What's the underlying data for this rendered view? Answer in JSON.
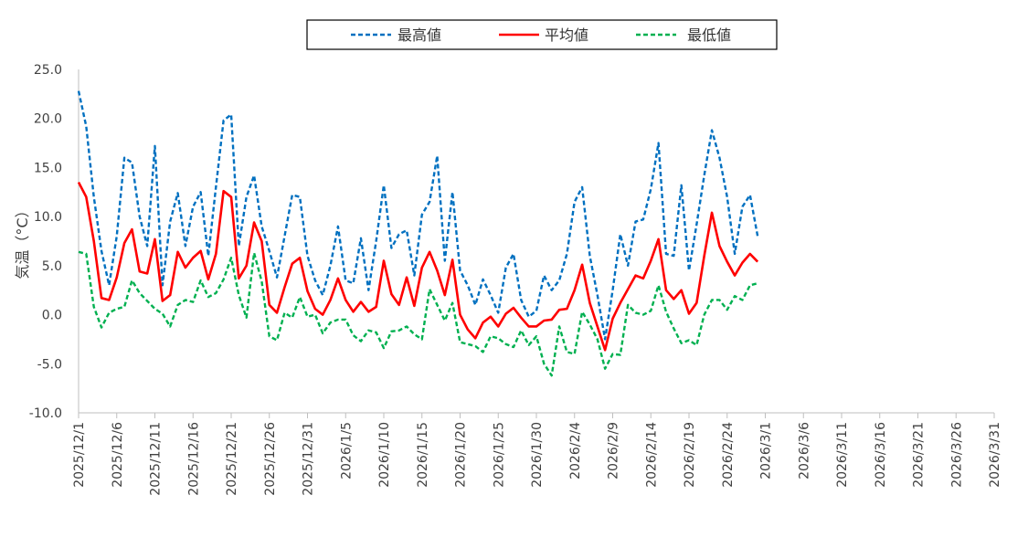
{
  "chart_data": {
    "type": "line",
    "title": "",
    "xlabel": "",
    "ylabel": "気温（°C）",
    "ylim": [
      -10,
      25
    ],
    "y_ticks": [
      "25.0",
      "20.0",
      "15.0",
      "10.0",
      "5.0",
      "0.0",
      "-5.0",
      "-10.0"
    ],
    "y_tick_values": [
      25,
      20,
      15,
      10,
      5,
      0,
      -5,
      -10
    ],
    "x_range": [
      "2025/12/1",
      "2026/3/31"
    ],
    "x_tick_labels": [
      "2025/12/1",
      "2025/12/6",
      "2025/12/11",
      "2025/12/16",
      "2025/12/21",
      "2025/12/26",
      "2025/12/31",
      "2026/1/5",
      "2026/1/10",
      "2026/1/15",
      "2026/1/20",
      "2026/1/25",
      "2026/1/30",
      "2026/2/4",
      "2026/2/9",
      "2026/2/14",
      "2026/2/19",
      "2026/2/24",
      "2026/3/1",
      "2026/3/6",
      "2026/3/11",
      "2026/3/16",
      "2026/3/21",
      "2026/3/26",
      "2026/3/31"
    ],
    "grid": false,
    "legend_position": "top-center",
    "series": [
      {
        "name": "最高値",
        "color": "#0070c0",
        "dash": "dashed",
        "values": [
          22.8,
          19.2,
          12.0,
          6.5,
          3.0,
          8.0,
          16.0,
          15.5,
          10.0,
          7.0,
          17.2,
          3.0,
          9.5,
          12.4,
          7.0,
          11.0,
          12.5,
          6.0,
          13.0,
          19.8,
          20.4,
          7.0,
          12.0,
          14.2,
          9.0,
          6.5,
          3.8,
          8.0,
          12.2,
          12.0,
          6.0,
          3.5,
          2.0,
          5.0,
          9.0,
          3.5,
          3.2,
          7.8,
          2.5,
          7.5,
          13.2,
          6.8,
          8.2,
          8.6,
          4.0,
          10.2,
          11.5,
          16.2,
          5.5,
          12.5,
          4.5,
          3.0,
          1.0,
          3.6,
          2.0,
          0.2,
          4.8,
          6.2,
          1.5,
          -0.2,
          0.4,
          4.0,
          2.5,
          3.5,
          6.2,
          11.5,
          13.0,
          6.0,
          2.0,
          -2.5,
          2.5,
          8.2,
          5.0,
          9.5,
          9.7,
          12.8,
          17.5,
          6.2,
          6.0,
          13.2,
          4.5,
          9.2,
          14.2,
          18.8,
          16.0,
          12.0,
          6.2,
          11.0,
          12.2,
          8.0
        ]
      },
      {
        "name": "平均値",
        "color": "#ff0000",
        "dash": "solid",
        "values": [
          13.5,
          12.0,
          7.5,
          1.7,
          1.5,
          3.8,
          7.3,
          8.7,
          4.4,
          4.2,
          7.7,
          1.4,
          2.0,
          6.4,
          4.8,
          5.8,
          6.5,
          3.6,
          6.2,
          12.6,
          12.0,
          3.7,
          5.0,
          9.4,
          7.5,
          1.0,
          0.2,
          2.8,
          5.2,
          5.8,
          2.4,
          0.6,
          0.0,
          1.5,
          3.7,
          1.5,
          0.3,
          1.3,
          0.3,
          0.8,
          5.5,
          2.1,
          1.0,
          3.8,
          0.9,
          4.8,
          6.4,
          4.5,
          2.0,
          5.6,
          0.0,
          -1.5,
          -2.4,
          -0.8,
          -0.2,
          -1.2,
          0.1,
          0.7,
          -0.3,
          -1.2,
          -1.2,
          -0.6,
          -0.5,
          0.5,
          0.6,
          2.5,
          5.1,
          1.2,
          -1.2,
          -3.6,
          -0.4,
          1.2,
          2.6,
          4.0,
          3.7,
          5.5,
          7.7,
          2.5,
          1.6,
          2.5,
          0.1,
          1.2,
          6.0,
          10.4,
          7.0,
          5.4,
          4.0,
          5.3,
          6.2,
          5.4
        ]
      },
      {
        "name": "最低値",
        "color": "#00b050",
        "dash": "dashed",
        "values": [
          6.4,
          6.2,
          0.8,
          -1.3,
          0.2,
          0.6,
          0.8,
          3.5,
          2.2,
          1.4,
          0.6,
          0.1,
          -1.2,
          1.0,
          1.5,
          1.3,
          3.5,
          1.8,
          2.2,
          3.6,
          5.8,
          2.0,
          -0.3,
          6.3,
          3.4,
          -2.2,
          -2.6,
          0.2,
          -0.3,
          1.8,
          -0.2,
          0.0,
          -1.9,
          -0.8,
          -0.5,
          -0.5,
          -2.1,
          -2.7,
          -1.6,
          -1.8,
          -3.4,
          -1.7,
          -1.6,
          -1.2,
          -2.0,
          -2.5,
          2.6,
          1.0,
          -0.6,
          1.2,
          -2.8,
          -3.0,
          -3.2,
          -3.8,
          -2.2,
          -2.4,
          -3.0,
          -3.3,
          -1.6,
          -3.1,
          -2.2,
          -5.0,
          -6.2,
          -1.2,
          -3.8,
          -4.0,
          0.3,
          -1.0,
          -2.5,
          -5.5,
          -4.0,
          -4.1,
          1.0,
          0.2,
          0.0,
          0.4,
          3.0,
          0.3,
          -1.4,
          -2.9,
          -2.6,
          -3.1,
          0.0,
          1.5,
          1.5,
          0.5,
          1.9,
          1.5,
          3.0,
          3.2
        ]
      }
    ]
  }
}
